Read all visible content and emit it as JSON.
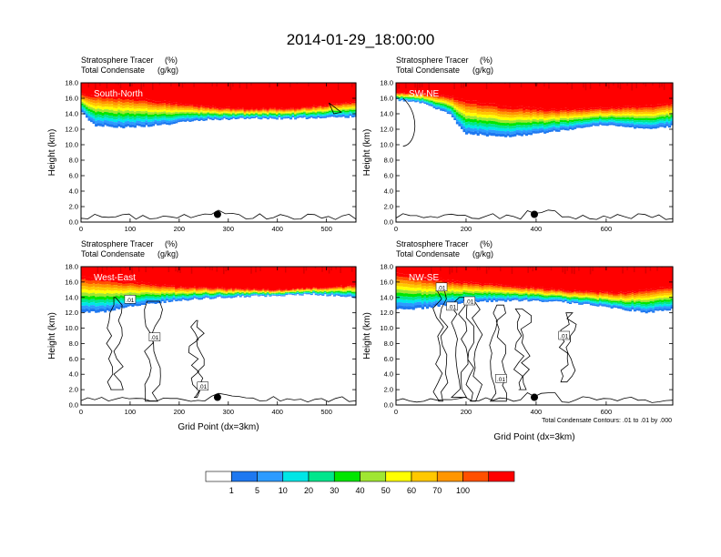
{
  "figure": {
    "title": "2014-01-29_18:00:00",
    "footnote": "Total Condensate Contours: .01 to .01 by .000"
  },
  "colorbar": {
    "labels": [
      "1",
      "5",
      "10",
      "20",
      "30",
      "40",
      "50",
      "60",
      "70",
      "100"
    ],
    "colors": [
      "#ffffff",
      "#1e78f0",
      "#2d9bff",
      "#00e6e6",
      "#00e68c",
      "#00e600",
      "#a0e632",
      "#ffff00",
      "#ffc800",
      "#ff9600",
      "#ff5000",
      "#ff0000"
    ]
  },
  "chart_data": [
    {
      "type": "heatmap",
      "panel_label": "South-North",
      "subtitle_left": "Stratosphere Tracer",
      "subtitle_units": "(%)",
      "subtitle2_left": "Total Condensate",
      "subtitle2_units": "(g/kg)",
      "ylabel": "Height (km)",
      "xlabel": "",
      "xlim": [
        0,
        560
      ],
      "ylim": [
        0,
        18
      ],
      "xticks": [
        0,
        100,
        200,
        300,
        400,
        500
      ],
      "yticks": [
        0,
        2,
        4,
        6,
        8,
        10,
        12,
        14,
        16,
        18
      ],
      "ytick_labels": [
        "0.0",
        "2.0",
        "4.0",
        "6.0",
        "8.0",
        "10.0",
        "12.0",
        "14.0",
        "16.0",
        "18.0"
      ],
      "marker": {
        "x": 278,
        "y": 1.0
      },
      "contour_labels": []
    },
    {
      "type": "heatmap",
      "panel_label": "SW-NE",
      "subtitle_left": "Stratosphere Tracer",
      "subtitle_units": "(%)",
      "subtitle2_left": "Total Condensate",
      "subtitle2_units": "(g/kg)",
      "ylabel": "Height (km)",
      "xlabel": "",
      "xlim": [
        0,
        790
      ],
      "ylim": [
        0,
        18
      ],
      "xticks": [
        0,
        200,
        400,
        600
      ],
      "yticks": [
        0,
        2,
        4,
        6,
        8,
        10,
        12,
        14,
        16,
        18
      ],
      "ytick_labels": [
        "0.0",
        "2.0",
        "4.0",
        "6.0",
        "8.0",
        "10.0",
        "12.0",
        "14.0",
        "16.0",
        "18.0"
      ],
      "marker": {
        "x": 395,
        "y": 1.0
      },
      "contour_labels": []
    },
    {
      "type": "heatmap",
      "panel_label": "West-East",
      "subtitle_left": "Stratosphere Tracer",
      "subtitle_units": "(%)",
      "subtitle2_left": "Total Condensate",
      "subtitle2_units": "(g/kg)",
      "ylabel": "Height (km)",
      "xlabel": "Grid Point (dx=3km)",
      "xlim": [
        0,
        560
      ],
      "ylim": [
        0,
        18
      ],
      "xticks": [
        0,
        100,
        200,
        300,
        400,
        500
      ],
      "yticks": [
        0,
        2,
        4,
        6,
        8,
        10,
        12,
        14,
        16,
        18
      ],
      "ytick_labels": [
        "0.0",
        "2.0",
        "4.0",
        "6.0",
        "8.0",
        "10.0",
        "12.0",
        "14.0",
        "16.0",
        "18.0"
      ],
      "marker": {
        "x": 278,
        "y": 1.0
      },
      "contour_labels": [
        {
          "text": ".01",
          "x": 100,
          "y": 13.7
        },
        {
          "text": ".01",
          "x": 150,
          "y": 8.8
        },
        {
          "text": ".01",
          "x": 248,
          "y": 2.4
        }
      ]
    },
    {
      "type": "heatmap",
      "panel_label": "NW-SE",
      "subtitle_left": "Stratosphere Tracer",
      "subtitle_units": "(%)",
      "subtitle2_left": "Total Condensate",
      "subtitle2_units": "(g/kg)",
      "ylabel": "Height (km)",
      "xlabel": "Grid Point (dx=3km)",
      "xlim": [
        0,
        790
      ],
      "ylim": [
        0,
        18
      ],
      "xticks": [
        0,
        200,
        400,
        600
      ],
      "yticks": [
        0,
        2,
        4,
        6,
        8,
        10,
        12,
        14,
        16,
        18
      ],
      "ytick_labels": [
        "0.0",
        "2.0",
        "4.0",
        "6.0",
        "8.0",
        "10.0",
        "12.0",
        "14.0",
        "16.0",
        "18.0"
      ],
      "marker": {
        "x": 395,
        "y": 1.0
      },
      "contour_labels": [
        {
          "text": ".01",
          "x": 130,
          "y": 15.3
        },
        {
          "text": ".01",
          "x": 160,
          "y": 12.8
        },
        {
          "text": ".01",
          "x": 210,
          "y": 13.5
        },
        {
          "text": ".01",
          "x": 480,
          "y": 9.0
        },
        {
          "text": ".01",
          "x": 300,
          "y": 3.4
        }
      ]
    }
  ]
}
